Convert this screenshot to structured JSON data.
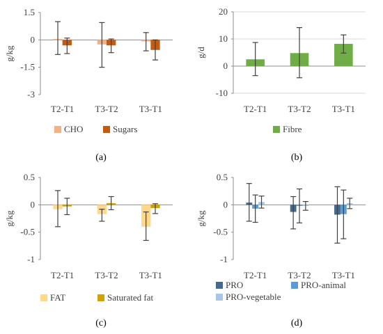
{
  "chart_data": [
    {
      "type": "bar",
      "panel_label": "(a)",
      "ylabel": "g/kg",
      "ylim": [
        -3,
        1.5
      ],
      "yticks": [
        1.5,
        0,
        -1.5,
        -3
      ],
      "ytick_labels": [
        "1.5",
        "0",
        "-1.5",
        "-3"
      ],
      "categories": [
        "T2-T1",
        "T3-T2",
        "T3-T1"
      ],
      "grid": false,
      "legend_position": "bottom",
      "series": [
        {
          "name": "CHO",
          "color": "#f4b183",
          "values": [
            0.05,
            -0.25,
            -0.08
          ],
          "error_low": [
            -0.8,
            -1.5,
            -0.6
          ],
          "error_high": [
            1.0,
            0.95,
            0.4
          ]
        },
        {
          "name": "Sugars",
          "color": "#c55a11",
          "values": [
            -0.3,
            -0.3,
            -0.55
          ],
          "error_low": [
            -0.75,
            -0.7,
            -1.1
          ],
          "error_high": [
            0.1,
            0.05,
            0.0
          ]
        }
      ]
    },
    {
      "type": "bar",
      "panel_label": "(b)",
      "ylabel": "g/d",
      "ylim": [
        -10,
        20
      ],
      "yticks": [
        20,
        10,
        0,
        -10
      ],
      "ytick_labels": [
        "20",
        "10",
        "0",
        "-10"
      ],
      "categories": [
        "T2-T1",
        "T3-T2",
        "T3-T1"
      ],
      "grid": true,
      "legend_position": "bottom",
      "series": [
        {
          "name": "Fibre",
          "color": "#70ad47",
          "values": [
            2.5,
            4.8,
            8.2
          ],
          "error_low": [
            -3.5,
            -4.3,
            4.8
          ],
          "error_high": [
            8.7,
            14.2,
            11.5
          ]
        }
      ]
    },
    {
      "type": "bar",
      "panel_label": "(c)",
      "ylabel": "g/kg",
      "ylim": [
        -1,
        0.5
      ],
      "yticks": [
        0.5,
        0,
        -0.5,
        -1
      ],
      "ytick_labels": [
        "0.5",
        "0",
        "-0.5",
        "-1"
      ],
      "categories": [
        "T2-T1",
        "T3-T2",
        "T3-T1"
      ],
      "grid": false,
      "legend_position": "bottom",
      "series": [
        {
          "name": "FAT",
          "color": "#ffd88a",
          "values": [
            -0.08,
            -0.17,
            -0.4
          ],
          "error_low": [
            -0.4,
            -0.3,
            -0.65
          ],
          "error_high": [
            0.26,
            -0.08,
            -0.13
          ]
        },
        {
          "name": "Saturated fat",
          "color": "#d4a200",
          "values": [
            -0.03,
            0.03,
            -0.06
          ],
          "error_low": [
            -0.18,
            -0.09,
            -0.16
          ],
          "error_high": [
            0.12,
            0.15,
            0.02
          ]
        }
      ]
    },
    {
      "type": "bar",
      "panel_label": "(d)",
      "ylabel": "g/kg",
      "ylim": [
        -1,
        0.5
      ],
      "yticks": [
        0.5,
        0,
        -0.5,
        -1
      ],
      "ytick_labels": [
        "0.5",
        "0",
        "-0.5",
        "-1"
      ],
      "categories": [
        "T2-T1",
        "T3-T2",
        "T3-T1"
      ],
      "grid": false,
      "legend_position": "bottom",
      "series": [
        {
          "name": "PRO",
          "color": "#44698f",
          "values": [
            0.04,
            -0.13,
            -0.18
          ],
          "error_low": [
            -0.3,
            -0.44,
            -0.7
          ],
          "error_high": [
            0.39,
            0.15,
            0.33
          ]
        },
        {
          "name": "PRO-animal",
          "color": "#5b9bd5",
          "values": [
            -0.07,
            -0.02,
            -0.17
          ],
          "error_low": [
            -0.32,
            -0.33,
            -0.62
          ],
          "error_high": [
            0.18,
            0.29,
            0.27
          ]
        },
        {
          "name": "PRO-vegetable",
          "color": "#a9c6e8",
          "values": [
            0.05,
            -0.02,
            0.03
          ],
          "error_low": [
            -0.06,
            -0.1,
            -0.07
          ],
          "error_high": [
            0.16,
            0.06,
            0.12
          ]
        }
      ]
    }
  ]
}
